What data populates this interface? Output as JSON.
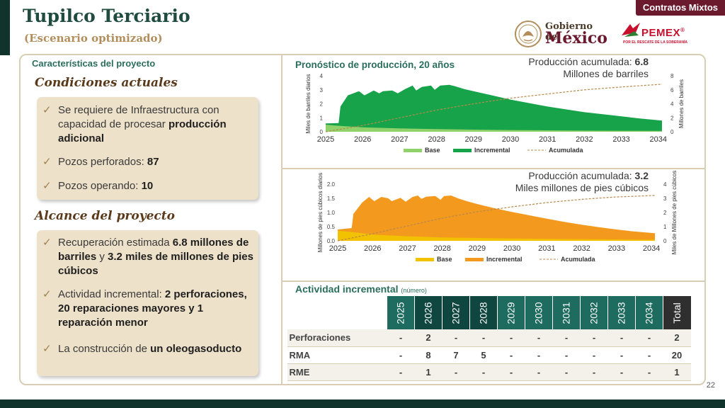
{
  "header": {
    "title": "Tupilco Terciario",
    "subtitle": "(Escenario optimizado)",
    "badge": "Contratos Mixtos",
    "gob_line1": "Gobierno de",
    "gob_line2": "México",
    "pemex_name": "PEMEX",
    "pemex_reg": "®",
    "pemex_tagline": "POR EL RESCATE DE LA SOBERANÍA"
  },
  "left": {
    "section_label": "Características del proyecto",
    "condiciones_title": "Condiciones actuales",
    "condiciones_items": [
      {
        "normal": "Se requiere de Infraestructura con capacidad de procesar ",
        "bold": "producción adicional",
        "tail": ""
      },
      {
        "normal": "Pozos perforados: ",
        "bold": "87",
        "tail": ""
      },
      {
        "normal": "Pozos operando: ",
        "bold": "10",
        "tail": ""
      }
    ],
    "alcance_title": "Alcance del proyecto",
    "alcance_items": [
      {
        "normal": "Recuperación estimada ",
        "bold": "6.8 millones de barriles",
        "mid": " y ",
        "bold2": " 3.2 miles de millones de pies cúbicos"
      },
      {
        "normal": "Actividad incremental: ",
        "bold": "2 perforaciones, 20 reparaciones mayores y 1 reparación menor",
        "mid": "",
        "bold2": ""
      },
      {
        "normal": "La construcción de ",
        "bold": "un oleogasoducto",
        "mid": "",
        "bold2": ""
      }
    ],
    "check_glyph": "✓"
  },
  "chart_data": [
    {
      "type": "area",
      "title": "Pronóstico de producción, 20 años",
      "acum_label": "Producción acumulada: ",
      "acum_value": "6.8",
      "acum_unit": "Millones de barriles",
      "ylabel": "Miles de barriles diarios",
      "y2label": "Millones de barriles",
      "ylim": [
        0,
        4
      ],
      "yticks": [
        "0",
        "1",
        "2",
        "3",
        "4"
      ],
      "y2lim": [
        0,
        8
      ],
      "y2ticks": [
        "0",
        "2",
        "4",
        "6",
        "8"
      ],
      "xlim": [
        2025,
        2034.1
      ],
      "xticks": [
        "2025",
        "2026",
        "2027",
        "2028",
        "2029",
        "2030",
        "2031",
        "2032",
        "2033",
        "2034"
      ],
      "legend": [
        "Base",
        "Incremental",
        "Acumulada"
      ],
      "colors": {
        "base": "#8fd16a",
        "incremental": "#16a34a",
        "acumulada": "#b8884a"
      },
      "series": [
        {
          "name": "Base",
          "x": [
            2025,
            2025.5,
            2026,
            2027,
            2028,
            2029,
            2030,
            2031,
            2032,
            2033,
            2034.1
          ],
          "values": [
            0.5,
            0.4,
            0.32,
            0.24,
            0.19,
            0.15,
            0.12,
            0.1,
            0.08,
            0.07,
            0.06
          ]
        },
        {
          "name": "Total",
          "x": [
            2025,
            2025.35,
            2025.4,
            2025.6,
            2025.9,
            2026.05,
            2026.3,
            2026.45,
            2026.55,
            2026.8,
            2026.95,
            2027.15,
            2027.35,
            2027.45,
            2027.6,
            2027.85,
            2027.95,
            2028.1,
            2028.35,
            2028.5,
            2028.75,
            2029,
            2029.5,
            2030,
            2030.5,
            2031,
            2031.5,
            2032,
            2032.5,
            2033,
            2033.5,
            2034.1
          ],
          "values": [
            0.6,
            0.62,
            1.8,
            2.6,
            2.9,
            2.6,
            2.95,
            2.75,
            2.9,
            2.95,
            2.75,
            3.05,
            3.3,
            2.95,
            3.2,
            3.3,
            3.0,
            3.3,
            3.35,
            3.25,
            3.05,
            2.9,
            2.6,
            2.3,
            2.05,
            1.8,
            1.6,
            1.4,
            1.25,
            1.1,
            0.95,
            0.8
          ]
        },
        {
          "name": "Acumulada",
          "x": [
            2025,
            2026,
            2027,
            2028,
            2029,
            2030,
            2031,
            2032,
            2033,
            2034.1
          ],
          "values": [
            0.0,
            0.9,
            2.0,
            3.1,
            4.0,
            4.8,
            5.4,
            6.0,
            6.4,
            6.8
          ]
        }
      ]
    },
    {
      "type": "area",
      "acum_label": "Producción acumulada: ",
      "acum_value": "3.2",
      "acum_unit": "Miles millones de pies cúbicos",
      "ylabel": "Millones de pies cúbicos diarios",
      "y2label": "Miles de Millones de pies cúbicos",
      "ylim": [
        0,
        2
      ],
      "yticks": [
        "0.0",
        "0.5",
        "1.0",
        "1.5",
        "2.0"
      ],
      "y2lim": [
        0,
        4
      ],
      "y2ticks": [
        "0",
        "1",
        "2",
        "3",
        "4"
      ],
      "xlim": [
        2025,
        2034.1
      ],
      "xticks": [
        "2025",
        "2026",
        "2027",
        "2028",
        "2029",
        "2030",
        "2031",
        "2032",
        "2033",
        "2034"
      ],
      "legend": [
        "Base",
        "Incremental",
        "Acumulada"
      ],
      "colors": {
        "base": "#f2c200",
        "incremental": "#f39a1e",
        "acumulada": "#b8884a"
      },
      "series": [
        {
          "name": "Base",
          "x": [
            2025,
            2025.5,
            2026,
            2027,
            2028,
            2029,
            2030,
            2031,
            2032,
            2033,
            2034.1
          ],
          "values": [
            0.36,
            0.3,
            0.22,
            0.16,
            0.12,
            0.1,
            0.08,
            0.07,
            0.06,
            0.05,
            0.04
          ]
        },
        {
          "name": "Total",
          "x": [
            2025,
            2025.4,
            2025.45,
            2025.7,
            2025.9,
            2026.05,
            2026.25,
            2026.45,
            2026.55,
            2026.8,
            2026.95,
            2027.15,
            2027.3,
            2027.4,
            2027.55,
            2027.8,
            2027.95,
            2028.05,
            2028.25,
            2028.45,
            2028.7,
            2029,
            2029.5,
            2030,
            2030.5,
            2031,
            2031.5,
            2032,
            2032.5,
            2033,
            2033.5,
            2034.1
          ],
          "values": [
            0.4,
            0.45,
            0.95,
            1.35,
            1.55,
            1.4,
            1.55,
            1.5,
            1.4,
            1.52,
            1.38,
            1.55,
            1.6,
            1.48,
            1.56,
            1.58,
            1.45,
            1.58,
            1.6,
            1.5,
            1.4,
            1.3,
            1.15,
            1.02,
            0.9,
            0.78,
            0.67,
            0.57,
            0.48,
            0.4,
            0.33,
            0.27
          ]
        },
        {
          "name": "Acumulada",
          "x": [
            2025,
            2026,
            2027,
            2028,
            2029,
            2030,
            2031,
            2032,
            2033,
            2034.1
          ],
          "values": [
            0.0,
            0.5,
            1.05,
            1.6,
            2.05,
            2.4,
            2.7,
            2.93,
            3.1,
            3.2
          ]
        }
      ]
    }
  ],
  "activity": {
    "title": "Actividad incremental",
    "unit": "(número)",
    "years": [
      "2025",
      "2026",
      "2027",
      "2028",
      "2029",
      "2030",
      "2031",
      "2032",
      "2033",
      "2034"
    ],
    "total_label": "Total",
    "rows": [
      {
        "label": "Perforaciones",
        "values": [
          "-",
          "2",
          "-",
          "-",
          "-",
          "-",
          "-",
          "-",
          "-",
          "-"
        ],
        "total": "2"
      },
      {
        "label": "RMA",
        "values": [
          "-",
          "8",
          "7",
          "5",
          "-",
          "-",
          "-",
          "-",
          "-",
          "-"
        ],
        "total": "20"
      },
      {
        "label": "RME",
        "values": [
          "-",
          "1",
          "-",
          "-",
          "-",
          "-",
          "-",
          "-",
          "-",
          "-"
        ],
        "total": "1"
      }
    ]
  },
  "page_number": "22"
}
